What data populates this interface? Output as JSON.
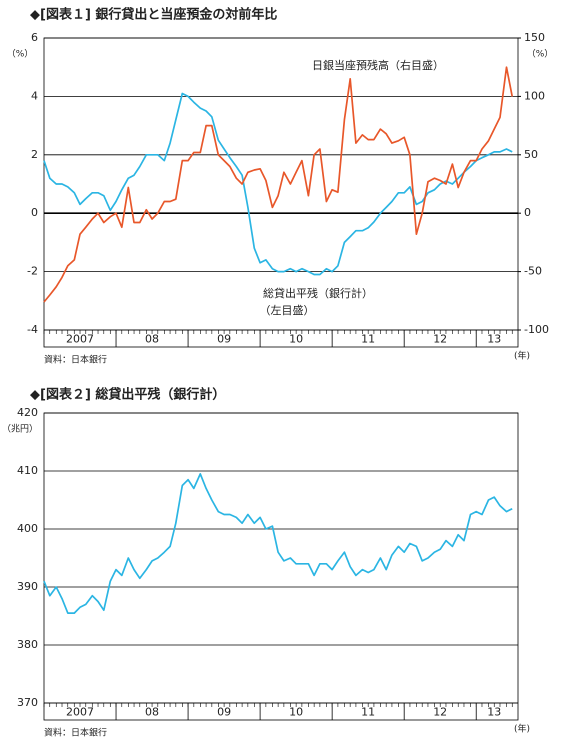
{
  "chart_data": [
    {
      "type": "line",
      "title": "◆[図表１] 銀行貸出と当座預金の対前年比",
      "y_unit": "（%）",
      "y2_unit": "（%）",
      "source": "資料：日本銀行",
      "x_unit": "(年)",
      "annotations": [
        "日銀当座預残高（右目盛）",
        "総貸出平残（銀行計）",
        "（左目盛）"
      ],
      "xlim": [
        2007,
        2013.58
      ],
      "xticks": [
        2008,
        2009,
        2010,
        2011,
        2012,
        2013
      ],
      "xlabels": [
        {
          "value": 2007.5,
          "label": "2007"
        },
        {
          "value": 2008.5,
          "label": "08"
        },
        {
          "value": 2009.5,
          "label": "09"
        },
        {
          "value": 2010.5,
          "label": "10"
        },
        {
          "value": 2011.5,
          "label": "11"
        },
        {
          "value": 2012.5,
          "label": "12"
        },
        {
          "value": 2013.25,
          "label": "13"
        }
      ],
      "ylim": [
        -4,
        6
      ],
      "yticks": [
        -4,
        -2,
        0,
        2,
        4,
        6
      ],
      "y2lim": [
        -100,
        150
      ],
      "y2ticks": [
        -100,
        -50,
        0,
        50,
        100,
        150
      ],
      "grid": true,
      "x": [
        2007.0,
        2007.08,
        2007.17,
        2007.25,
        2007.33,
        2007.42,
        2007.5,
        2007.58,
        2007.67,
        2007.75,
        2007.83,
        2007.92,
        2008.0,
        2008.08,
        2008.17,
        2008.25,
        2008.33,
        2008.42,
        2008.5,
        2008.58,
        2008.67,
        2008.75,
        2008.83,
        2008.92,
        2009.0,
        2009.08,
        2009.17,
        2009.25,
        2009.33,
        2009.42,
        2009.5,
        2009.58,
        2009.67,
        2009.75,
        2009.83,
        2009.92,
        2010.0,
        2010.08,
        2010.17,
        2010.25,
        2010.33,
        2010.42,
        2010.5,
        2010.58,
        2010.67,
        2010.75,
        2010.83,
        2010.92,
        2011.0,
        2011.08,
        2011.17,
        2011.25,
        2011.33,
        2011.42,
        2011.5,
        2011.58,
        2011.67,
        2011.75,
        2011.83,
        2011.92,
        2012.0,
        2012.08,
        2012.17,
        2012.25,
        2012.33,
        2012.42,
        2012.5,
        2012.58,
        2012.67,
        2012.75,
        2012.83,
        2012.92,
        2013.0,
        2013.08,
        2013.17,
        2013.25,
        2013.33,
        2013.42,
        2013.5
      ],
      "series": [
        {
          "color": "#2bb5e3",
          "values": [
            1.8,
            1.2,
            1.0,
            1.0,
            0.9,
            0.7,
            0.3,
            0.5,
            0.7,
            0.7,
            0.6,
            0.1,
            0.4,
            0.8,
            1.2,
            1.3,
            1.6,
            2.0,
            2.0,
            2.0,
            1.8,
            2.4,
            3.2,
            4.1,
            4.0,
            3.8,
            3.6,
            3.5,
            3.3,
            2.5,
            2.2,
            1.9,
            1.6,
            1.3,
            0.2,
            -1.2,
            -1.7,
            -1.6,
            -1.9,
            -2.0,
            -2.0,
            -1.9,
            -2.0,
            -1.9,
            -2.0,
            -2.1,
            -2.1,
            -1.9,
            -2.0,
            -1.8,
            -1.0,
            -0.8,
            -0.6,
            -0.6,
            -0.5,
            -0.3,
            0.0,
            0.2,
            0.4,
            0.7,
            0.7,
            0.9,
            0.3,
            0.4,
            0.7,
            0.8,
            1.0,
            1.1,
            1.0,
            1.2,
            1.4,
            1.6,
            1.8,
            1.9,
            2.0,
            2.1,
            2.1,
            2.2,
            2.1
          ]
        },
        {
          "color": "#e8572a",
          "axis": "y2",
          "values": [
            -76,
            -70,
            -63,
            -55,
            -45,
            -40,
            -18,
            -12,
            -5,
            0,
            -8,
            -3,
            0,
            -12,
            22,
            -8,
            -8,
            3,
            -5,
            0,
            10,
            10,
            12,
            45,
            45,
            52,
            52,
            75,
            75,
            50,
            45,
            40,
            30,
            25,
            35,
            37,
            38,
            28,
            5,
            15,
            35,
            25,
            35,
            45,
            15,
            50,
            55,
            10,
            20,
            18,
            80,
            115,
            60,
            67,
            63,
            63,
            72,
            68,
            60,
            62,
            65,
            50,
            -18,
            0,
            27,
            30,
            28,
            25,
            42,
            22,
            35,
            45,
            45,
            55,
            62,
            72,
            82,
            125,
            100
          ]
        }
      ]
    },
    {
      "type": "line",
      "title": "◆[図表２] 総貸出平残（銀行計）",
      "y_unit": "（兆円）",
      "source": "資料：日本銀行",
      "x_unit": "(年)",
      "xlim": [
        2007,
        2013.58
      ],
      "xticks": [
        2008,
        2009,
        2010,
        2011,
        2012,
        2013
      ],
      "xlabels": [
        {
          "value": 2007.5,
          "label": "2007"
        },
        {
          "value": 2008.5,
          "label": "08"
        },
        {
          "value": 2009.5,
          "label": "09"
        },
        {
          "value": 2010.5,
          "label": "10"
        },
        {
          "value": 2011.5,
          "label": "11"
        },
        {
          "value": 2012.5,
          "label": "12"
        },
        {
          "value": 2013.25,
          "label": "13"
        }
      ],
      "ylim": [
        370,
        420
      ],
      "yticks": [
        370,
        380,
        390,
        400,
        410,
        420
      ],
      "grid": true,
      "x": [
        2007.0,
        2007.08,
        2007.17,
        2007.25,
        2007.33,
        2007.42,
        2007.5,
        2007.58,
        2007.67,
        2007.75,
        2007.83,
        2007.92,
        2008.0,
        2008.08,
        2008.17,
        2008.25,
        2008.33,
        2008.42,
        2008.5,
        2008.58,
        2008.67,
        2008.75,
        2008.83,
        2008.92,
        2009.0,
        2009.08,
        2009.17,
        2009.25,
        2009.33,
        2009.42,
        2009.5,
        2009.58,
        2009.67,
        2009.75,
        2009.83,
        2009.92,
        2010.0,
        2010.08,
        2010.17,
        2010.25,
        2010.33,
        2010.42,
        2010.5,
        2010.58,
        2010.67,
        2010.75,
        2010.83,
        2010.92,
        2011.0,
        2011.08,
        2011.17,
        2011.25,
        2011.33,
        2011.42,
        2011.5,
        2011.58,
        2011.67,
        2011.75,
        2011.83,
        2011.92,
        2012.0,
        2012.08,
        2012.17,
        2012.25,
        2012.33,
        2012.42,
        2012.5,
        2012.58,
        2012.67,
        2012.75,
        2012.83,
        2012.92,
        2013.0,
        2013.08,
        2013.17,
        2013.25,
        2013.33,
        2013.42,
        2013.5
      ],
      "series": [
        {
          "color": "#2bb5e3",
          "values": [
            391,
            388.5,
            390,
            388,
            385.5,
            385.5,
            386.5,
            387,
            388.5,
            387.5,
            386,
            391,
            393,
            392,
            395,
            393,
            391.5,
            393,
            394.5,
            395,
            396,
            397,
            401,
            407.5,
            408.5,
            407,
            409.5,
            407,
            405,
            403,
            402.5,
            402.5,
            402,
            401,
            402.5,
            401,
            402,
            400,
            400.5,
            396,
            394.5,
            395,
            394,
            394,
            394,
            392,
            394,
            394,
            393,
            394.5,
            396,
            393.5,
            392,
            393,
            392.5,
            393,
            395,
            393,
            395.5,
            397,
            396,
            397.5,
            397,
            394.5,
            395,
            396,
            396.5,
            398,
            397,
            399,
            398,
            402.5,
            403,
            402.5,
            405,
            405.5,
            404,
            403,
            403.5
          ]
        }
      ]
    }
  ]
}
